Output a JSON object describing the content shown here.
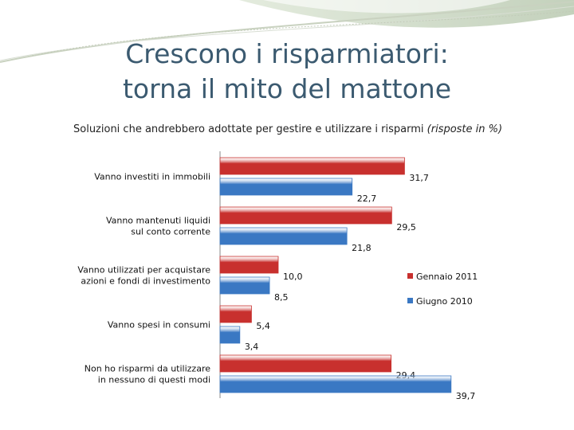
{
  "header": {
    "title_line1": "Crescono i risparmiatori:",
    "title_line2": "torna il mito del mattone",
    "subtitle": "Soluzioni che andrebbero adottate per gestire e utilizzare i risparmi",
    "subtitle_note": "(risposte in %)"
  },
  "colors": {
    "red": "#c8302e",
    "blue": "#3a78c3",
    "title": "#3b5a70"
  },
  "chart_data": {
    "type": "bar",
    "orientation": "horizontal",
    "title": "Soluzioni che andrebbero adottate per gestire e utilizzare i risparmi (risposte in %)",
    "categories": [
      [
        "Vanno  investiti in immobili"
      ],
      [
        "Vanno mantenuti liquidi",
        "sul conto corrente"
      ],
      [
        "Vanno utilizzati per acquistare",
        "azioni e fondi di investimento"
      ],
      [
        "Vanno spesi in consumi"
      ],
      [
        "Non ho risparmi da utilizzare",
        "in nessuno di questi modi"
      ]
    ],
    "series": [
      {
        "name": "Gennaio 2011",
        "color": "#c8302e",
        "values": [
          31.7,
          29.5,
          10.0,
          5.4,
          29.4
        ],
        "labels": [
          "31,7",
          "29,5",
          "10,0",
          "5,4",
          "29,4"
        ]
      },
      {
        "name": "Giugno 2010",
        "color": "#3a78c3",
        "values": [
          22.7,
          21.8,
          8.5,
          3.4,
          39.7
        ],
        "labels": [
          "22,7",
          "21,8",
          "8,5",
          "3,4",
          "39,7"
        ]
      }
    ],
    "xlim": [
      0,
      40
    ],
    "grid": false,
    "legend": "right"
  }
}
